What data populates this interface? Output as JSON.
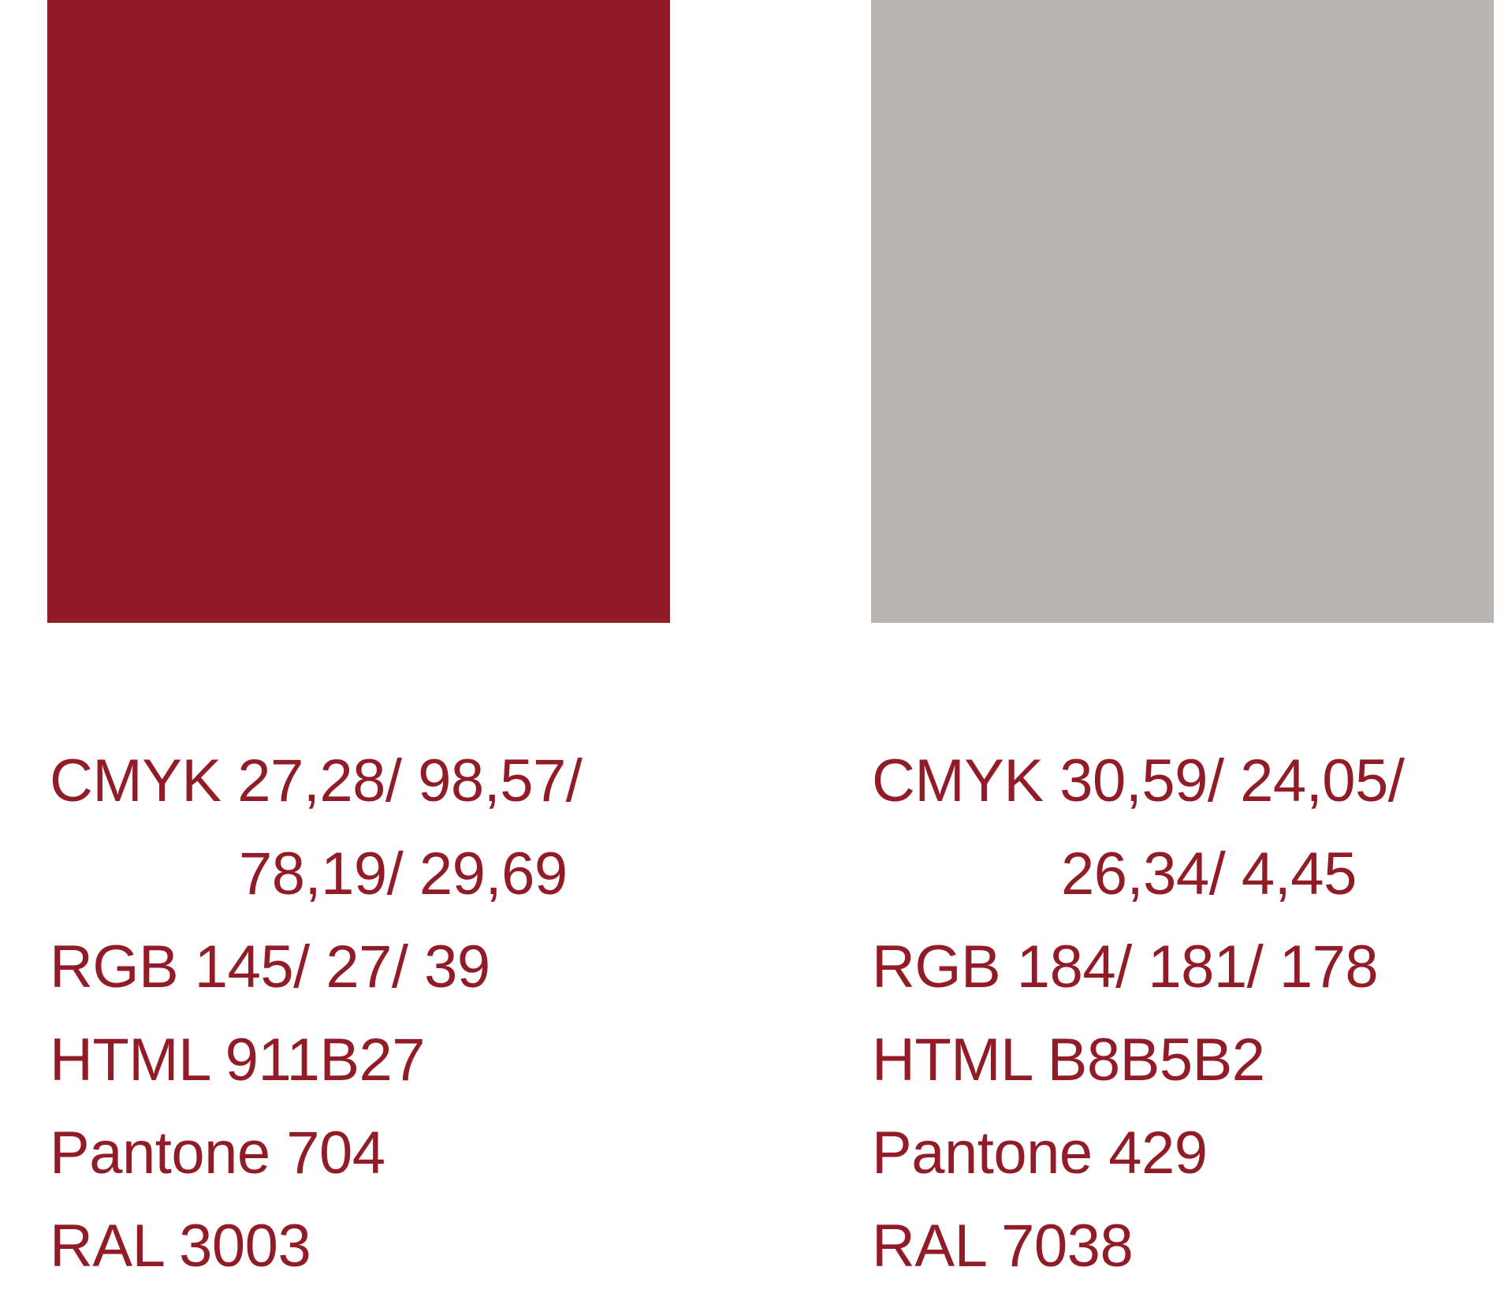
{
  "colors": [
    {
      "hex": "#911B27",
      "cmyk_line1": "CMYK 27,28/ 98,57/",
      "cmyk_line2": "78,19/ 29,69",
      "rgb": "RGB 145/ 27/ 39",
      "html": "HTML 911B27",
      "pantone": "Pantone 704",
      "ral": "RAL 3003"
    },
    {
      "hex": "#B8B5B2",
      "cmyk_line1": "CMYK 30,59/ 24,05/",
      "cmyk_line2": "26,34/ 4,45",
      "rgb": "RGB 184/ 181/ 178",
      "html": "HTML B8B5B2",
      "pantone": "Pantone 429",
      "ral": "RAL 7038"
    }
  ],
  "text_color": "#911B27"
}
